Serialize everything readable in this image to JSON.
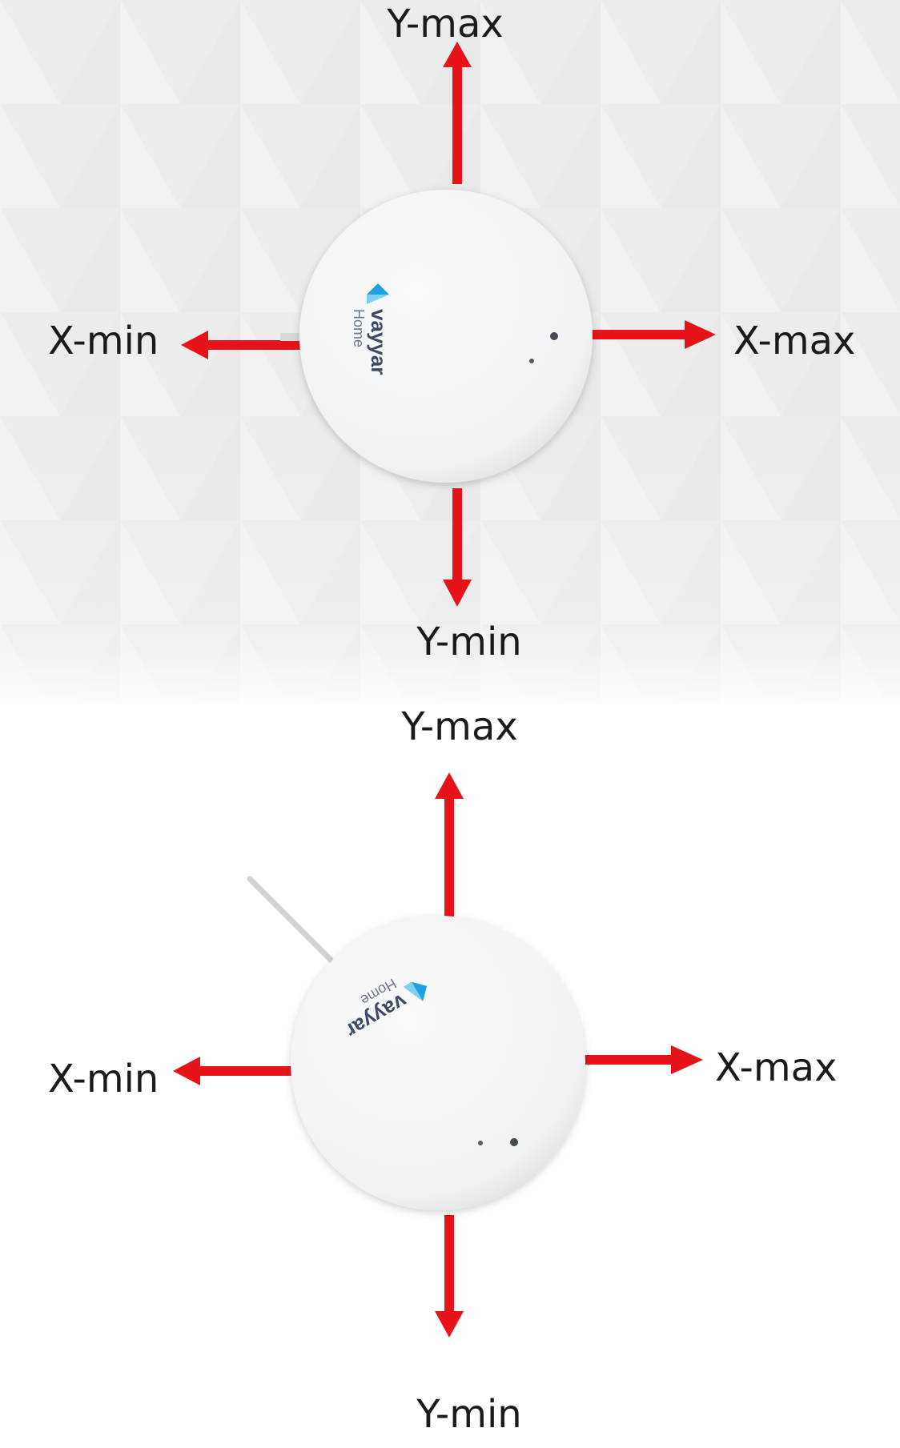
{
  "colors": {
    "arrow": "#e8131a",
    "device": "#f4f5f6",
    "logo": "#1aa3dc",
    "text": "#1a1a1a"
  },
  "device_brand": {
    "name": "vayyar",
    "sub": "Home"
  },
  "panels": [
    {
      "id": "top",
      "background": "triangle-pattern",
      "labels": {
        "y_max": "Y-max",
        "y_min": "Y-min",
        "x_min": "X-min",
        "x_max": "X-max"
      }
    },
    {
      "id": "bottom",
      "background": "plain-white",
      "labels": {
        "y_max": "Y-max",
        "y_min": "Y-min",
        "x_min": "X-min",
        "x_max": "X-max"
      }
    }
  ]
}
